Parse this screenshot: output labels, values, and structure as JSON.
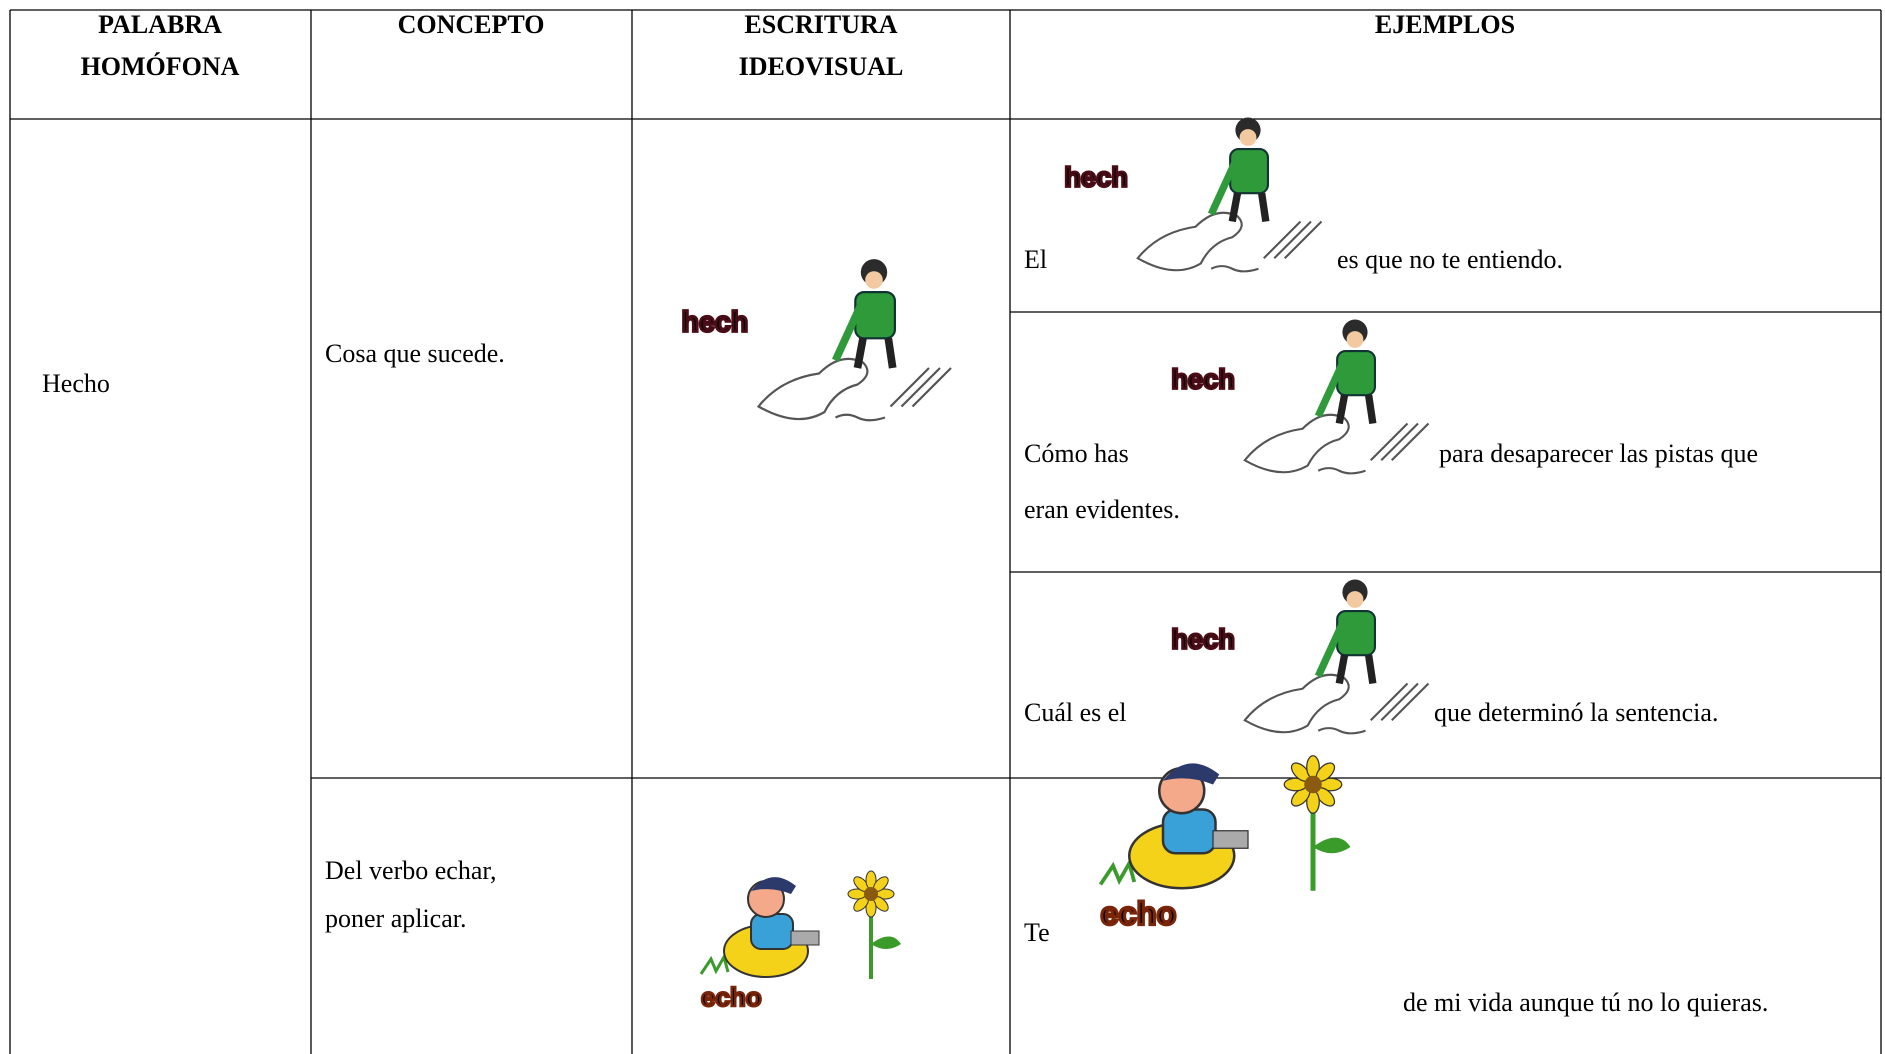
{
  "table": {
    "headers": [
      [
        "PALABRA",
        "HOMÓFONA"
      ],
      [
        "CONCEPTO"
      ],
      [
        "ESCRITURA",
        "IDEOVISUAL"
      ],
      [
        "EJEMPLOS"
      ]
    ],
    "word": "Hecho",
    "rows": [
      {
        "concept": [
          "Cosa que sucede."
        ],
        "image_word": "hech",
        "examples": [
          {
            "before": "El",
            "image_word": "hech",
            "after": [
              "es que no te entiendo."
            ]
          },
          {
            "before": "Cómo has",
            "image_word": "hech",
            "after": [
              "para desaparecer las pistas que",
              "eran evidentes."
            ]
          },
          {
            "before": "Cuál es el",
            "image_word": "hech",
            "after": [
              "que determinó la sentencia."
            ]
          }
        ]
      },
      {
        "concept": [
          "Del verbo echar,",
          "poner aplicar."
        ],
        "image_word": "echo",
        "examples": [
          {
            "before": "Te",
            "image_word": "echo",
            "after": [
              "de mi vida aunque tú no lo quieras."
            ]
          }
        ]
      }
    ]
  }
}
